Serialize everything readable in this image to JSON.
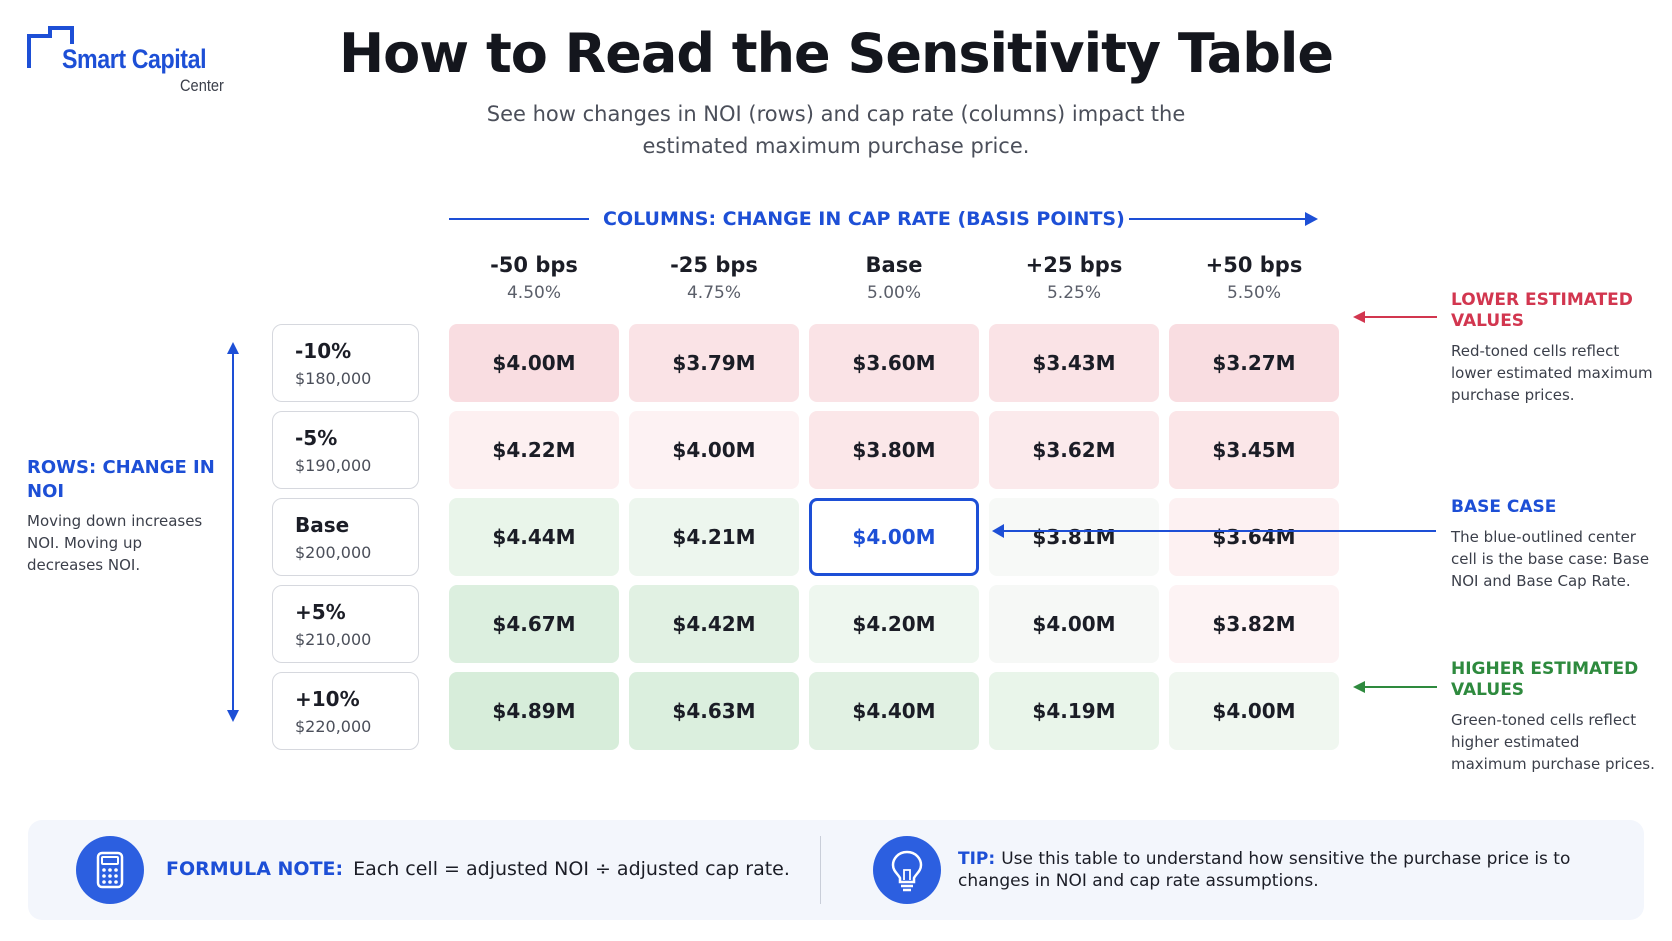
{
  "logo": {
    "main": "Smart Capital",
    "sub": "Center"
  },
  "title": "How to Read the Sensitivity Table",
  "subtitle": "See how changes in NOI (rows) and cap rate (columns) impact the estimated maximum purchase price.",
  "columns_banner": "COLUMNS: CHANGE IN CAP RATE (BASIS POINTS)",
  "columns": [
    {
      "label": "-50 bps",
      "rate": "4.50%"
    },
    {
      "label": "-25 bps",
      "rate": "4.75%"
    },
    {
      "label": "Base",
      "rate": "5.00%"
    },
    {
      "label": "+25 bps",
      "rate": "5.25%"
    },
    {
      "label": "+50 bps",
      "rate": "5.50%"
    }
  ],
  "rows": [
    {
      "label": "-10%",
      "noi": "$180,000",
      "cells": [
        "$4.00M",
        "$3.79M",
        "$3.60M",
        "$3.43M",
        "$3.27M"
      ]
    },
    {
      "label": "-5%",
      "noi": "$190,000",
      "cells": [
        "$4.22M",
        "$4.00M",
        "$3.80M",
        "$3.62M",
        "$3.45M"
      ]
    },
    {
      "label": "Base",
      "noi": "$200,000",
      "cells": [
        "$4.44M",
        "$4.21M",
        "$4.00M",
        "$3.81M",
        "$3.64M"
      ]
    },
    {
      "label": "+5%",
      "noi": "$210,000",
      "cells": [
        "$4.67M",
        "$4.42M",
        "$4.20M",
        "$4.00M",
        "$3.82M"
      ]
    },
    {
      "label": "+10%",
      "noi": "$220,000",
      "cells": [
        "$4.89M",
        "$4.63M",
        "$4.40M",
        "$4.19M",
        "$4.00M"
      ]
    }
  ],
  "cell_colors": [
    [
      "#f9dde1",
      "#fae3e6",
      "#fae3e6",
      "#fae3e6",
      "#f9dde1"
    ],
    [
      "#fdf0f1",
      "#fdf2f3",
      "#fbe7e9",
      "#fbeaec",
      "#fbe6e8"
    ],
    [
      "#e9f5ea",
      "#edf6ee",
      "#ffffff",
      "#f7f9f7",
      "#fdf1f2"
    ],
    [
      "#dcefdf",
      "#e1f1e3",
      "#eef7ef",
      "#f6f8f6",
      "#fdf3f4"
    ],
    [
      "#d7edda",
      "#dbefde",
      "#e1f1e3",
      "#e9f5ea",
      "#f0f7f0"
    ]
  ],
  "base_cell": {
    "row": 2,
    "col": 2
  },
  "rows_axis": {
    "title": "ROWS: CHANGE IN NOI",
    "note": "Moving down increases NOI. Moving up decreases NOI."
  },
  "annotations": {
    "lower": {
      "title": "LOWER ESTIMATED VALUES",
      "text": "Red-toned cells reflect lower estimated maximum purchase prices."
    },
    "base": {
      "title": "BASE CASE",
      "text": "The blue-outlined center cell is the base case: Base NOI and Base Cap Rate."
    },
    "higher": {
      "title": "HIGHER ESTIMATED VALUES",
      "text": "Green-toned cells reflect higher estimated maximum purchase prices."
    }
  },
  "formula": {
    "key": "FORMULA NOTE:",
    "text": "Each cell = adjusted NOI ÷ adjusted cap rate.",
    "icon": "calculator-icon"
  },
  "tip": {
    "key": "TIP:",
    "text": "Use this table to understand how sensitive the purchase price is to changes in NOI and cap rate assumptions.",
    "icon": "lightbulb-icon"
  },
  "colors": {
    "accent": "#1d4fd6",
    "red": "#d2364f",
    "green": "#2e8a3e"
  }
}
